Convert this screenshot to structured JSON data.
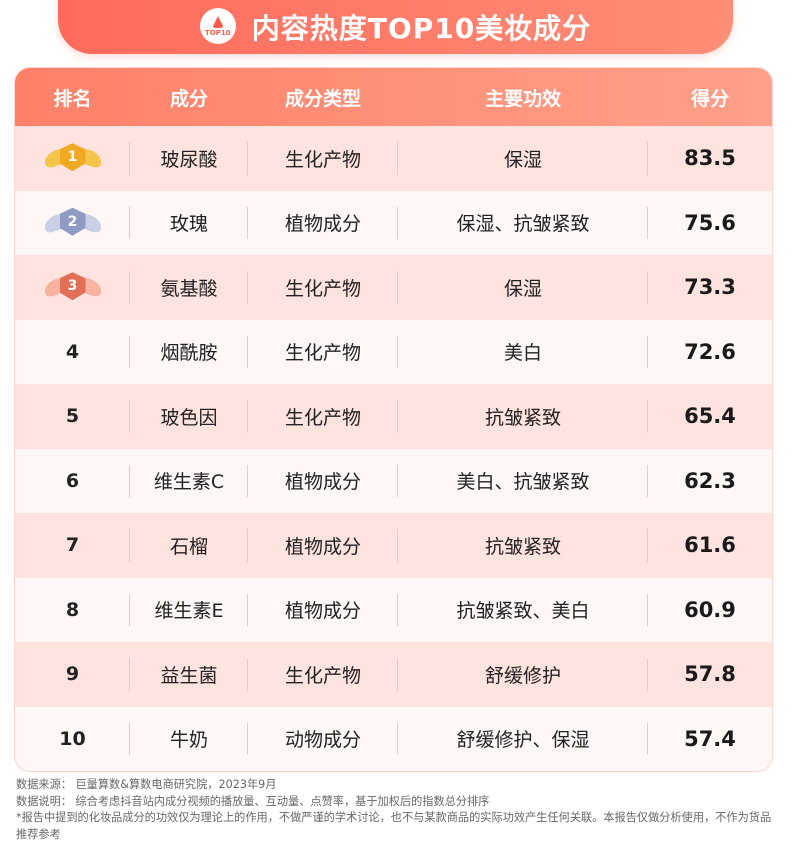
{
  "title": "内容热度TOP10美妆成分",
  "logo_text": "TOP10",
  "table": {
    "headers": [
      "排名",
      "成分",
      "成分类型",
      "主要功效",
      "得分"
    ],
    "rows": [
      {
        "rank": "1",
        "ingredient": "玻尿酸",
        "type": "生化产物",
        "effect": "保湿",
        "score": "83.5",
        "medal": "gold"
      },
      {
        "rank": "2",
        "ingredient": "玫瑰",
        "type": "植物成分",
        "effect": "保湿、抗皱紧致",
        "score": "75.6",
        "medal": "silver"
      },
      {
        "rank": "3",
        "ingredient": "氨基酸",
        "type": "生化产物",
        "effect": "保湿",
        "score": "73.3",
        "medal": "bronze"
      },
      {
        "rank": "4",
        "ingredient": "烟酰胺",
        "type": "生化产物",
        "effect": "美白",
        "score": "72.6"
      },
      {
        "rank": "5",
        "ingredient": "玻色因",
        "type": "生化产物",
        "effect": "抗皱紧致",
        "score": "65.4"
      },
      {
        "rank": "6",
        "ingredient": "维生素C",
        "type": "植物成分",
        "effect": "美白、抗皱紧致",
        "score": "62.3"
      },
      {
        "rank": "7",
        "ingredient": "石榴",
        "type": "植物成分",
        "effect": "抗皱紧致",
        "score": "61.6"
      },
      {
        "rank": "8",
        "ingredient": "维生素E",
        "type": "植物成分",
        "effect": "抗皱紧致、美白",
        "score": "60.9"
      },
      {
        "rank": "9",
        "ingredient": "益生菌",
        "type": "生化产物",
        "effect": "舒缓修护",
        "score": "57.8"
      },
      {
        "rank": "10",
        "ingredient": "牛奶",
        "type": "动物成分",
        "effect": "舒缓修护、保湿",
        "score": "57.4"
      }
    ]
  },
  "medal_colors": {
    "gold": {
      "wing": "#f6c44a",
      "shield": "#f1a923"
    },
    "silver": {
      "wing": "#c9d0e6",
      "shield": "#8f9bc2"
    },
    "bronze": {
      "wing": "#f6b3a0",
      "shield": "#e06f55"
    }
  },
  "footer": {
    "source": "数据来源：   巨量算数&算数电商研究院，2023年9月",
    "note": "数据说明：   综合考虑抖音站内成分视频的播放量、互动量、点赞率，基于加权后的指数总分排序",
    "disclaimer": "*报告中提到的化妆品成分的功效仅为理论上的作用，不做严谨的学术讨论，也不与某款商品的实际功效产生任何关联。本报告仅做分析使用，不作为货品推荐参考"
  }
}
